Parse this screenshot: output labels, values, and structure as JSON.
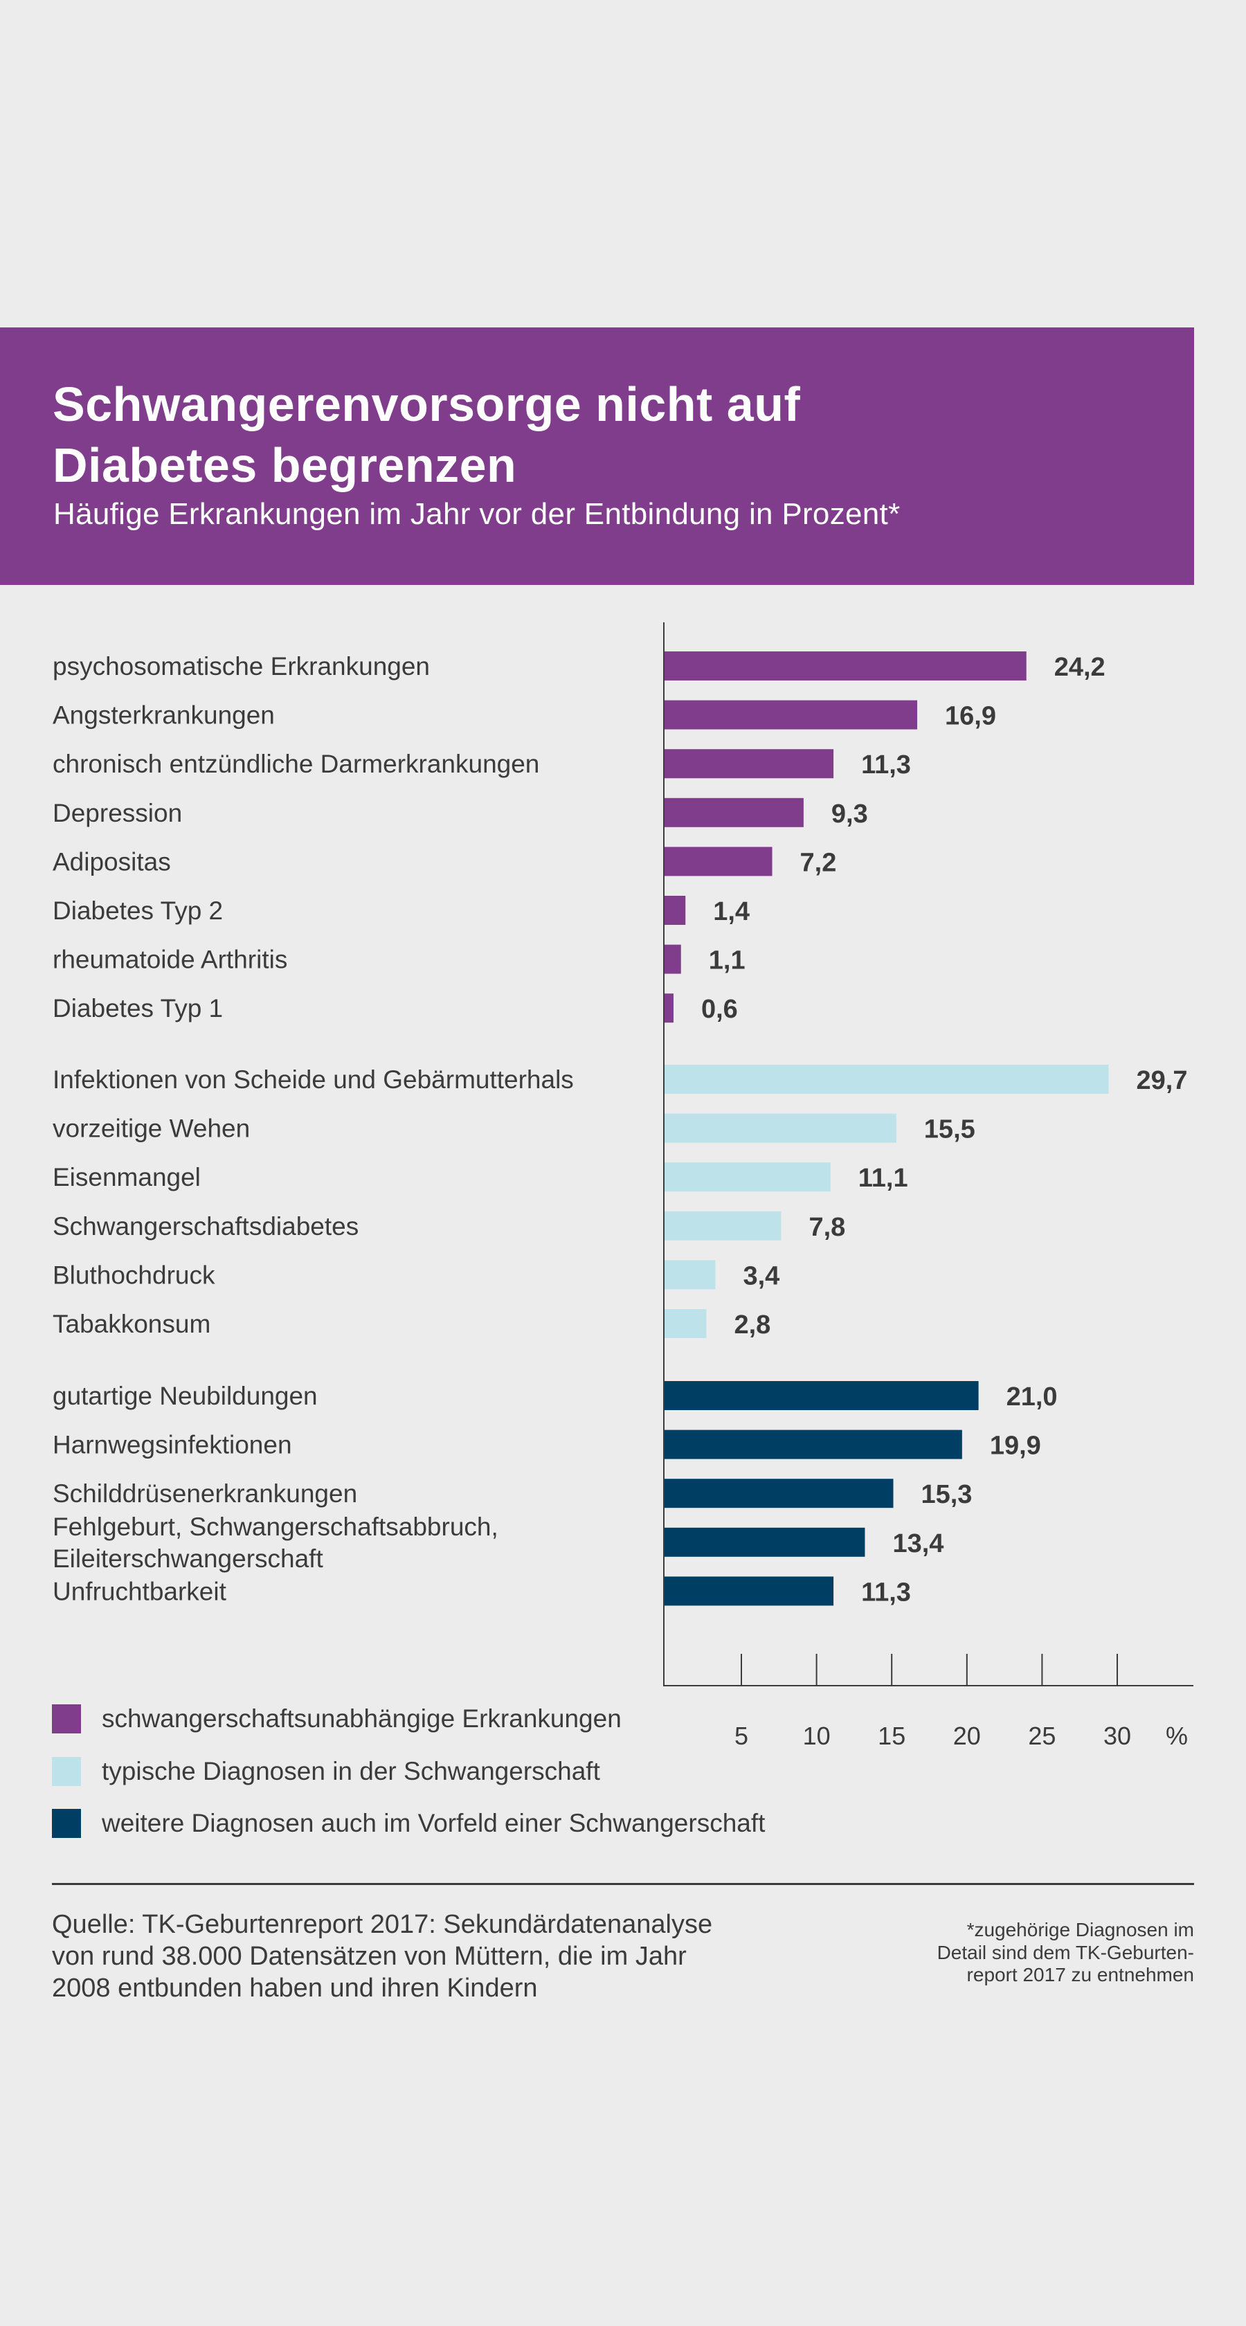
{
  "header": {
    "title_lines": [
      "Schwangerenvorsorge nicht auf",
      "Diabetes begrenzen"
    ],
    "subtitle": "Häufige Erkrankungen im Jahr vor der Entbindung in Prozent*"
  },
  "colors": {
    "brand_purple": "#7f3d8c",
    "light_blue": "#bde2ea",
    "dark_blue": "#003f63",
    "background": "#ececec",
    "text": "#3b3b3b"
  },
  "chart_data": {
    "type": "bar",
    "orientation": "horizontal",
    "title": "Schwangerenvorsorge nicht auf Diabetes begrenzen",
    "subtitle": "Häufige Erkrankungen im Jahr vor der Entbindung in Prozent*",
    "xlabel": "%",
    "ylabel": "",
    "xlim": [
      0,
      30
    ],
    "x_ticks": [
      5,
      10,
      15,
      20,
      25,
      30
    ],
    "x_tick_labels": [
      "5",
      "10",
      "15",
      "20",
      "25",
      "30"
    ],
    "x_unit_label": "%",
    "grid": false,
    "legend_position": "bottom-left",
    "decimal_separator": ",",
    "series": [
      {
        "name": "schwangerschaftsunabhängige Erkrankungen",
        "color": "#7f3d8c",
        "categories": [
          "psychosomatische Erkrankungen",
          "Angsterkrankungen",
          "chronisch entzündliche Darmerkrankungen",
          "Depression",
          "Adipositas",
          "Diabetes Typ 2",
          "rheumatoide Arthritis",
          "Diabetes Typ 1"
        ],
        "values": [
          24.2,
          16.9,
          11.3,
          9.3,
          7.2,
          1.4,
          1.1,
          0.6
        ],
        "value_labels": [
          "24,2",
          "16,9",
          "11,3",
          "9,3",
          "7,2",
          "1,4",
          "1,1",
          "0,6"
        ]
      },
      {
        "name": "typische Diagnosen in der Schwangerschaft",
        "color": "#bde2ea",
        "categories": [
          "Infektionen von Scheide und Gebärmutterhals",
          "vorzeitige Wehen",
          "Eisenmangel",
          "Schwangerschaftsdiabetes",
          "Bluthochdruck",
          "Tabakkonsum"
        ],
        "values": [
          29.7,
          15.5,
          11.1,
          7.8,
          3.4,
          2.8
        ],
        "value_labels": [
          "29,7",
          "15,5",
          "11,1",
          "7,8",
          "3,4",
          "2,8"
        ]
      },
      {
        "name": "weitere Diagnosen auch im Vorfeld einer Schwangerschaft",
        "color": "#003f63",
        "categories": [
          "gutartige Neubildungen",
          "Harnwegsinfektionen",
          "Schilddrüsenerkrankungen",
          "Fehlgeburt, Schwangerschaftsabbruch, Eileiterschwangerschaft",
          "Unfruchtbarkeit"
        ],
        "category_lines": [
          [
            "gutartige Neubildungen"
          ],
          [
            "Harnwegsinfektionen"
          ],
          [
            "Schilddrüsenerkrankungen"
          ],
          [
            "Fehlgeburt, Schwangerschaftsabbruch,",
            "Eileiterschwangerschaft"
          ],
          [
            "Unfruchtbarkeit"
          ]
        ],
        "values": [
          21.0,
          19.9,
          15.3,
          13.4,
          11.3
        ],
        "value_labels": [
          "21,0",
          "19,9",
          "15,3",
          "13,4",
          "11,3"
        ]
      }
    ]
  },
  "legend": [
    {
      "label": "schwangerschaftsunabhängige Erkrankungen",
      "color": "#7f3d8c"
    },
    {
      "label": "typische Diagnosen in der Schwangerschaft",
      "color": "#bde2ea"
    },
    {
      "label": "weitere Diagnosen auch im Vorfeld einer Schwangerschaft",
      "color": "#003f63"
    }
  ],
  "footer": {
    "source_lines": [
      "Quelle: TK-Geburtenreport 2017: Sekundärdatenanalyse",
      "von rund 38.000 Datensätzen von Müttern, die im Jahr",
      "2008 entbunden haben und ihren Kindern"
    ],
    "footnote_lines": [
      "*zugehörige Diagnosen im",
      "Detail sind dem TK-Geburten-",
      "report 2017 zu entnehmen"
    ]
  }
}
